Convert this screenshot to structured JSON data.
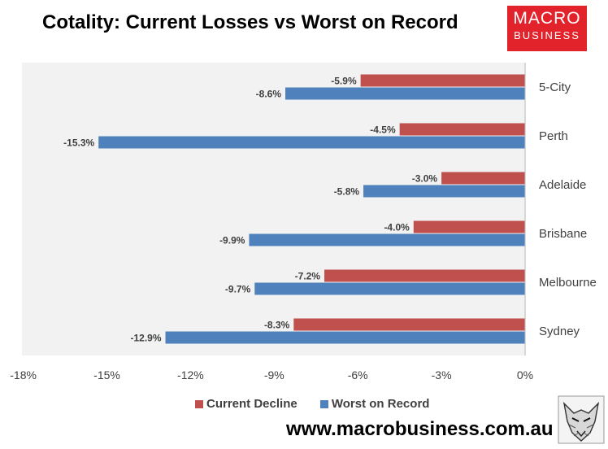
{
  "title": "Cotality: Current Losses vs Worst on Record",
  "logo": {
    "line1": "MACRO",
    "line2": "BUSINESS"
  },
  "url": "www.macrobusiness.com.au",
  "chart_data": {
    "type": "bar",
    "orientation": "horizontal",
    "categories": [
      "5-City",
      "Perth",
      "Adelaide",
      "Brisbane",
      "Melbourne",
      "Sydney"
    ],
    "series": [
      {
        "name": "Current Decline",
        "color": "#c0504d",
        "values": [
          -5.9,
          -4.5,
          -3.0,
          -4.0,
          -7.2,
          -8.3
        ]
      },
      {
        "name": "Worst on Record",
        "color": "#4f81bd",
        "values": [
          -8.6,
          -15.3,
          -5.8,
          -9.9,
          -9.7,
          -12.9
        ]
      }
    ],
    "data_labels": [
      [
        "-5.9%",
        "-4.5%",
        "-3.0%",
        "-4.0%",
        "-7.2%",
        "-8.3%"
      ],
      [
        "-8.6%",
        "-15.3%",
        "-5.8%",
        "-9.9%",
        "-9.7%",
        "-12.9%"
      ]
    ],
    "xticks": [
      -18,
      -15,
      -12,
      -9,
      -6,
      -3,
      0
    ],
    "xtick_labels": [
      "-18%",
      "-15%",
      "-12%",
      "-9%",
      "-6%",
      "-3%",
      "0%"
    ],
    "xlim": [
      -18,
      0
    ],
    "grid": false,
    "legend_position": "bottom",
    "plot_background": "#f2f2f2"
  }
}
